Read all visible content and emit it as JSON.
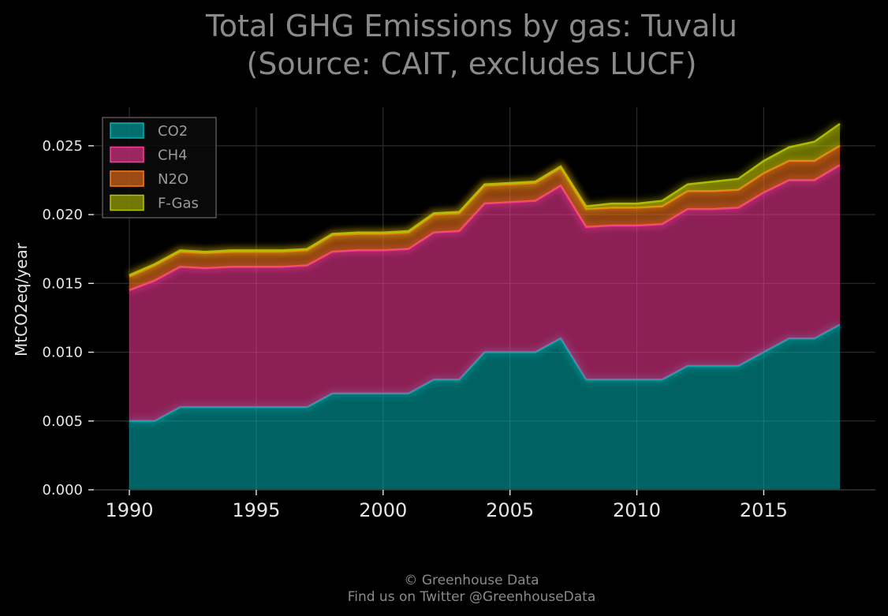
{
  "chart_data": {
    "type": "area",
    "stacked": true,
    "title": [
      "Total GHG Emissions by gas: Tuvalu",
      "(Source: CAIT, excludes LUCF)"
    ],
    "xlabel": "",
    "ylabel": "MtCO2eq/year",
    "x": [
      1990,
      1991,
      1992,
      1993,
      1994,
      1995,
      1996,
      1997,
      1998,
      1999,
      2000,
      2001,
      2002,
      2003,
      2004,
      2005,
      2006,
      2007,
      2008,
      2009,
      2010,
      2011,
      2012,
      2013,
      2014,
      2015,
      2016,
      2017,
      2018
    ],
    "xlim": [
      1988.6,
      2019.4
    ],
    "ylim": [
      0,
      0.0278
    ],
    "xticks": [
      1990,
      1995,
      2000,
      2005,
      2010,
      2015
    ],
    "xtick_labels": [
      "1990",
      "1995",
      "2000",
      "2005",
      "2010",
      "2015"
    ],
    "yticks": [
      0,
      0.005,
      0.01,
      0.015,
      0.02,
      0.025
    ],
    "ytick_labels": [
      "0.000",
      "0.005",
      "0.010",
      "0.015",
      "0.020",
      "0.025"
    ],
    "grid": true,
    "legend_position": "top-left",
    "series": [
      {
        "name": "CO2",
        "color": "#00b3b3",
        "values": [
          0.005,
          0.005,
          0.006,
          0.006,
          0.006,
          0.006,
          0.006,
          0.006,
          0.007,
          0.007,
          0.007,
          0.007,
          0.008,
          0.008,
          0.01,
          0.01,
          0.01,
          0.011,
          0.008,
          0.008,
          0.008,
          0.008,
          0.009,
          0.009,
          0.009,
          0.01,
          0.011,
          0.011,
          0.012
        ]
      },
      {
        "name": "CH4",
        "color": "#ff3b9a",
        "values": [
          0.0095,
          0.0102,
          0.0102,
          0.0101,
          0.0102,
          0.0102,
          0.0102,
          0.0103,
          0.0103,
          0.0104,
          0.0104,
          0.0105,
          0.0107,
          0.0108,
          0.0108,
          0.0109,
          0.011,
          0.0111,
          0.0111,
          0.0112,
          0.0112,
          0.0113,
          0.0114,
          0.0114,
          0.0115,
          0.0116,
          0.0115,
          0.0115,
          0.0116
        ]
      },
      {
        "name": "N2O",
        "color": "#ff7a1a",
        "values": [
          0.001,
          0.0011,
          0.0011,
          0.0011,
          0.0011,
          0.0011,
          0.0011,
          0.0011,
          0.0012,
          0.0012,
          0.0012,
          0.0012,
          0.0013,
          0.0013,
          0.0013,
          0.0013,
          0.0013,
          0.0013,
          0.0013,
          0.0013,
          0.0013,
          0.0013,
          0.0013,
          0.0013,
          0.0013,
          0.0014,
          0.0014,
          0.0014,
          0.0014
        ]
      },
      {
        "name": "F-Gas",
        "color": "#b8c400",
        "values": [
          0.0001,
          0.0001,
          0.0001,
          0.0001,
          0.0001,
          0.0001,
          0.0001,
          0.0001,
          0.0001,
          0.0001,
          0.0001,
          0.0001,
          0.0001,
          0.0001,
          0.0001,
          0.0001,
          0.0001,
          0.0001,
          0.0002,
          0.0003,
          0.0003,
          0.0004,
          0.0005,
          0.0007,
          0.0008,
          0.0009,
          0.001,
          0.0014,
          0.0016
        ]
      }
    ]
  },
  "footer": {
    "line1": "© Greenhouse Data",
    "line2": "Find us on Twitter @GreenhouseData"
  }
}
